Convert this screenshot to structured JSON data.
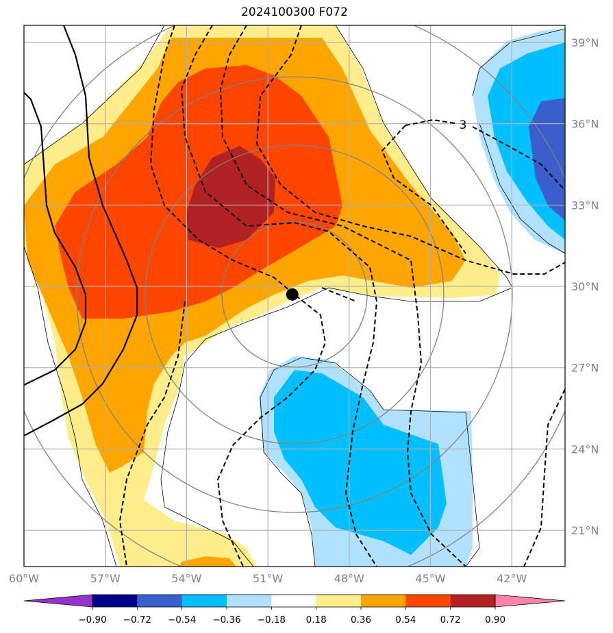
{
  "title": "2024100300 F072",
  "lon_labels": [
    "60°W",
    "57°W",
    "54°W",
    "51°W",
    "48°W",
    "45°W",
    "42°W"
  ],
  "lat_labels": [
    "39°N",
    "36°N",
    "33°N",
    "30°N",
    "27°N",
    "24°N",
    "21°N"
  ],
  "contour_label": "3",
  "colorbar": {
    "ticks": [
      "−0.90",
      "−0.72",
      "−0.54",
      "−0.36",
      "−0.18",
      "0.18",
      "0.36",
      "0.54",
      "0.72",
      "0.90"
    ],
    "colors": [
      "#9932cc",
      "#00008b",
      "#3a5fcd",
      "#00bfff",
      "#b0e2ff",
      "#ffffff",
      "#ffec8b",
      "#ffa500",
      "#ff4500",
      "#b22222",
      "#ff82ab"
    ]
  },
  "fill_colors": {
    "pos_1": "#ffec8b",
    "pos_2": "#ffa500",
    "pos_3": "#ff4500",
    "pos_4": "#b22222",
    "neg_1": "#b0e2ff",
    "neg_2": "#00bfff",
    "neg_3": "#3a5fcd"
  },
  "marker": {
    "lon": -50.1,
    "lat": 29.7
  }
}
